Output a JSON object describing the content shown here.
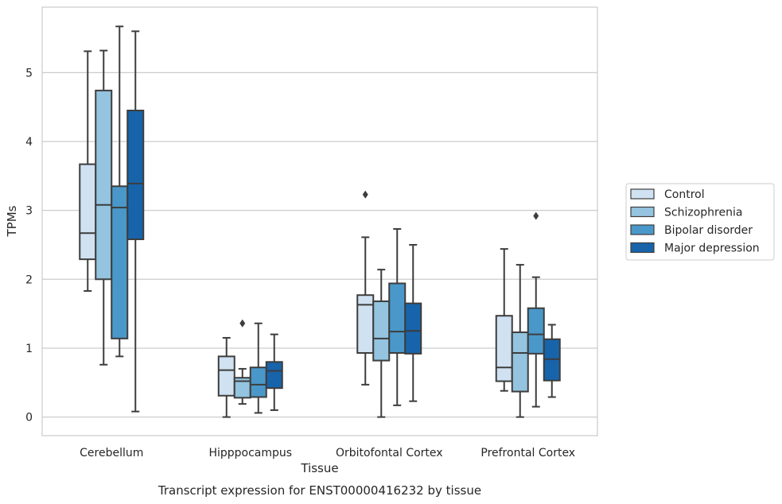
{
  "caption": "Transcript expression for ENST00000416232 by tissue",
  "chart_data": {
    "type": "boxplot",
    "title": "",
    "xlabel": "Tissue",
    "ylabel": "TPMs",
    "ylim": [
      -0.27,
      5.95
    ],
    "yticks": [
      0,
      1,
      2,
      3,
      4,
      5
    ],
    "grid": "horizontal",
    "legend_position": "right",
    "categories": [
      "Cerebellum",
      "Hipppocampus",
      "Orbitofontal Cortex",
      "Prefrontal Cortex"
    ],
    "series": [
      {
        "name": "Control",
        "color": "#d0e1f2",
        "boxes": [
          {
            "whisker_low": 1.83,
            "q1": 2.29,
            "median": 2.67,
            "q3": 3.67,
            "whisker_high": 5.31,
            "outliers": []
          },
          {
            "whisker_low": 0.0,
            "q1": 0.31,
            "median": 0.68,
            "q3": 0.88,
            "whisker_high": 1.15,
            "outliers": []
          },
          {
            "whisker_low": 0.47,
            "q1": 0.93,
            "median": 1.63,
            "q3": 1.77,
            "whisker_high": 2.61,
            "outliers": [
              3.23
            ]
          },
          {
            "whisker_low": 0.38,
            "q1": 0.52,
            "median": 0.72,
            "q3": 1.47,
            "whisker_high": 2.44,
            "outliers": []
          }
        ]
      },
      {
        "name": "Schizophrenia",
        "color": "#94c4df",
        "boxes": [
          {
            "whisker_low": 0.76,
            "q1": 2.0,
            "median": 3.08,
            "q3": 4.74,
            "whisker_high": 5.32,
            "outliers": []
          },
          {
            "whisker_low": 0.19,
            "q1": 0.28,
            "median": 0.52,
            "q3": 0.57,
            "whisker_high": 0.7,
            "outliers": [
              1.36
            ]
          },
          {
            "whisker_low": 0.0,
            "q1": 0.82,
            "median": 1.14,
            "q3": 1.68,
            "whisker_high": 2.14,
            "outliers": []
          },
          {
            "whisker_low": 0.0,
            "q1": 0.37,
            "median": 0.93,
            "q3": 1.23,
            "whisker_high": 2.21,
            "outliers": []
          }
        ]
      },
      {
        "name": "Bipolar disorder",
        "color": "#4a98c9",
        "boxes": [
          {
            "whisker_low": 0.88,
            "q1": 1.14,
            "median": 3.04,
            "q3": 3.35,
            "whisker_high": 5.67,
            "outliers": []
          },
          {
            "whisker_low": 0.06,
            "q1": 0.29,
            "median": 0.47,
            "q3": 0.72,
            "whisker_high": 1.36,
            "outliers": []
          },
          {
            "whisker_low": 0.17,
            "q1": 0.93,
            "median": 1.24,
            "q3": 1.94,
            "whisker_high": 2.73,
            "outliers": []
          },
          {
            "whisker_low": 0.15,
            "q1": 0.92,
            "median": 1.2,
            "q3": 1.58,
            "whisker_high": 2.03,
            "outliers": [
              2.92
            ]
          }
        ]
      },
      {
        "name": "Major depression",
        "color": "#1764ab",
        "boxes": [
          {
            "whisker_low": 0.08,
            "q1": 2.58,
            "median": 3.39,
            "q3": 4.45,
            "whisker_high": 5.6,
            "outliers": []
          },
          {
            "whisker_low": 0.1,
            "q1": 0.42,
            "median": 0.67,
            "q3": 0.8,
            "whisker_high": 1.2,
            "outliers": []
          },
          {
            "whisker_low": 0.23,
            "q1": 0.92,
            "median": 1.25,
            "q3": 1.65,
            "whisker_high": 2.5,
            "outliers": []
          },
          {
            "whisker_low": 0.29,
            "q1": 0.53,
            "median": 0.84,
            "q3": 1.13,
            "whisker_high": 1.34,
            "outliers": []
          }
        ]
      }
    ]
  }
}
